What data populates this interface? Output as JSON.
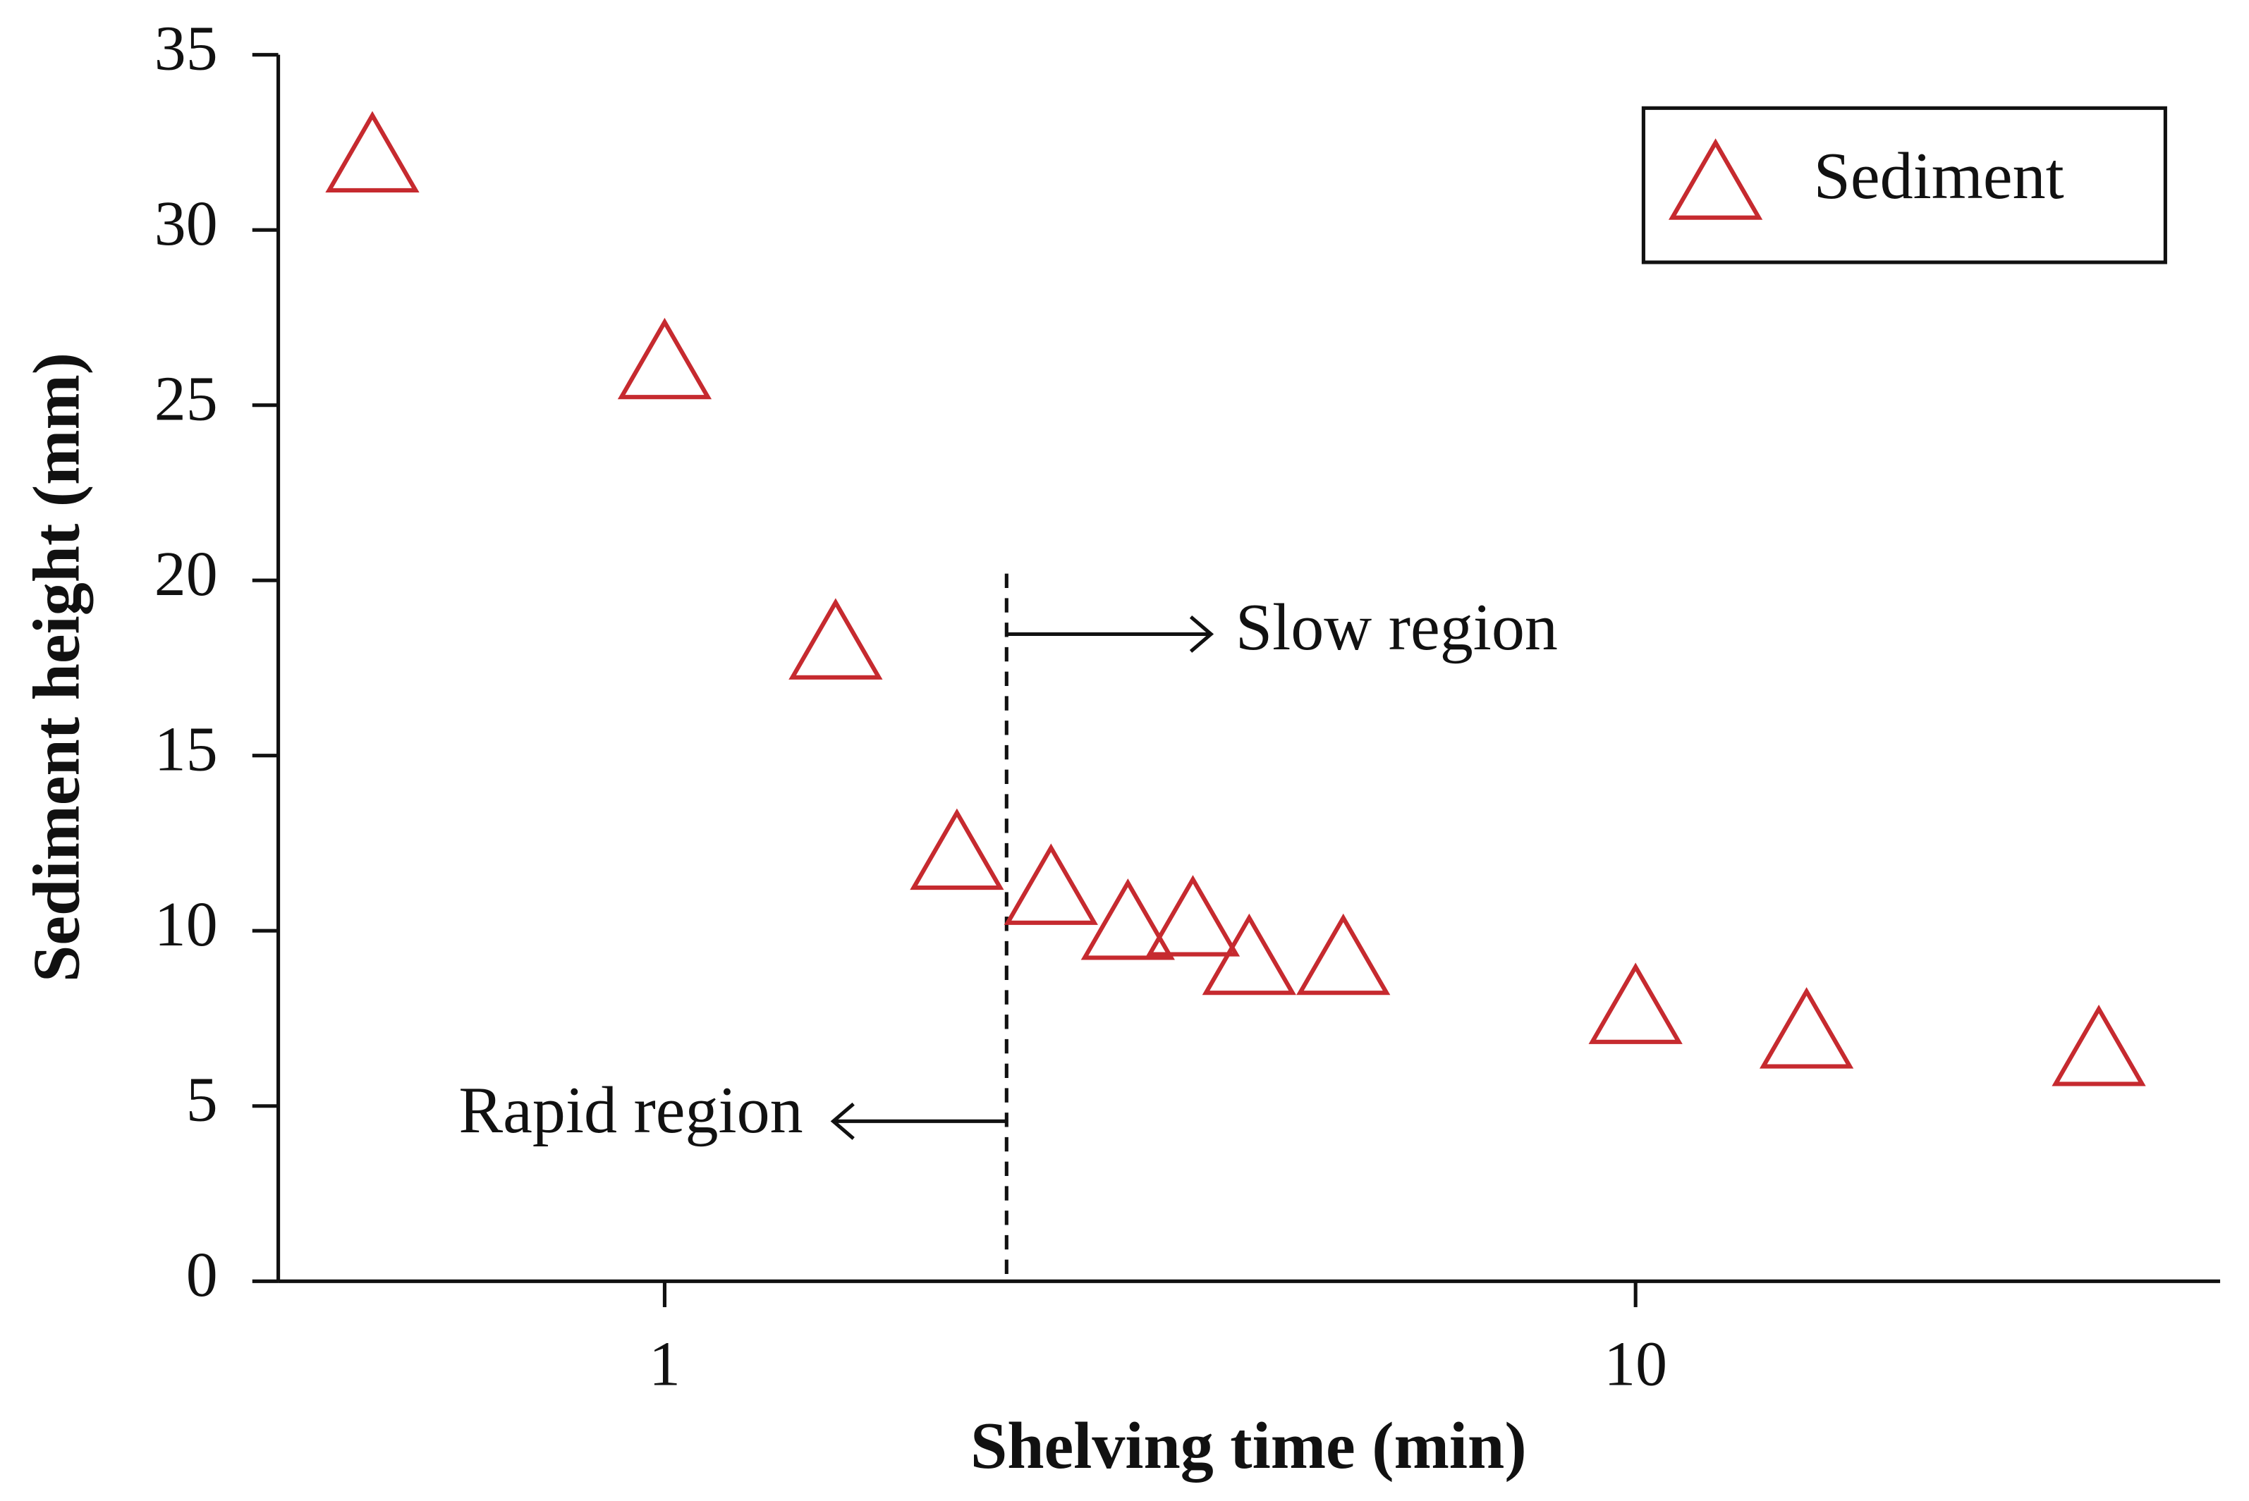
{
  "chart_data": {
    "type": "scatter",
    "xlabel": "Shelving time (min)",
    "ylabel": "Sediment height (mm)",
    "xscale": "log",
    "xlim": [
      0.4,
      40
    ],
    "xticks": [
      1,
      10
    ],
    "ylim": [
      0,
      35
    ],
    "yticks": [
      0,
      5,
      10,
      15,
      20,
      25,
      30,
      35
    ],
    "legend": "top-right",
    "series": [
      {
        "name": "Sediment",
        "color": "#c62a2f",
        "marker": "triangle",
        "x": [
          0.5,
          1,
          1.5,
          2,
          2.5,
          3,
          3.5,
          4,
          5,
          10,
          15,
          30
        ],
        "values": [
          32.2,
          26.3,
          18.3,
          12.3,
          11.3,
          10.3,
          10.4,
          9.3,
          9.3,
          7.9,
          7.2,
          6.7
        ]
      }
    ],
    "divider_x": 2.25,
    "annotations": [
      "Slow region",
      "Rapid region"
    ]
  }
}
